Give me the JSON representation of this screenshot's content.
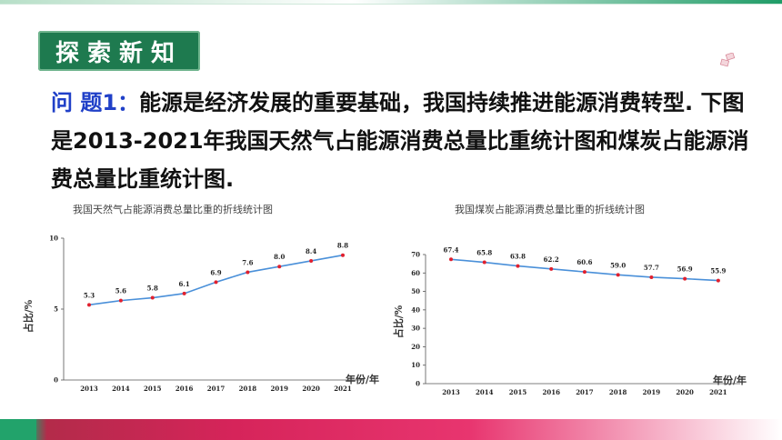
{
  "slide": {
    "section_tag": "探索新知",
    "problem_label": "问 题1：",
    "problem_text": "能源是经济发展的重要基础，我国持续推进能源消费转型. 下图是2013-2021年我国天然气占能源消费总量比重统计图和煤炭占能源消费总量比重统计图."
  },
  "colors": {
    "accent_green": "#1e7a4f",
    "problem_label": "#2040c8",
    "line": "#4a90d9",
    "marker": "#e0202e"
  },
  "chart_data": [
    {
      "type": "line",
      "title": "我国天然气占能源消费总量比重的折线统计图",
      "xlabel": "年份/年",
      "ylabel": "占比/%",
      "categories": [
        "2013",
        "2014",
        "2015",
        "2016",
        "2017",
        "2018",
        "2019",
        "2020",
        "2021"
      ],
      "values": [
        5.3,
        5.6,
        5.8,
        6.1,
        6.9,
        7.6,
        8.0,
        8.4,
        8.8
      ],
      "data_labels": [
        "5.3",
        "5.6",
        "5.8",
        "6.1",
        "6.9",
        "7.6",
        "8.0",
        "8.4",
        "8.8"
      ],
      "ylim": [
        0,
        10
      ],
      "yticks": [
        "0",
        "5",
        "10"
      ],
      "grid": false
    },
    {
      "type": "line",
      "title": "我国煤炭占能源消费总量比重的折线统计图",
      "xlabel": "年份/年",
      "ylabel": "占比/%",
      "categories": [
        "2013",
        "2014",
        "2015",
        "2016",
        "2017",
        "2018",
        "2019",
        "2020",
        "2021"
      ],
      "values": [
        67.4,
        65.8,
        63.8,
        62.2,
        60.6,
        59.0,
        57.7,
        56.9,
        55.9
      ],
      "data_labels": [
        "67.4",
        "65.8",
        "63.8",
        "62.2",
        "60.6",
        "59.0",
        "57.7",
        "56.9",
        "55.9"
      ],
      "ylim": [
        0,
        70
      ],
      "yticks": [
        "0",
        "10",
        "20",
        "30",
        "40",
        "50",
        "60",
        "70"
      ],
      "grid": false
    }
  ]
}
